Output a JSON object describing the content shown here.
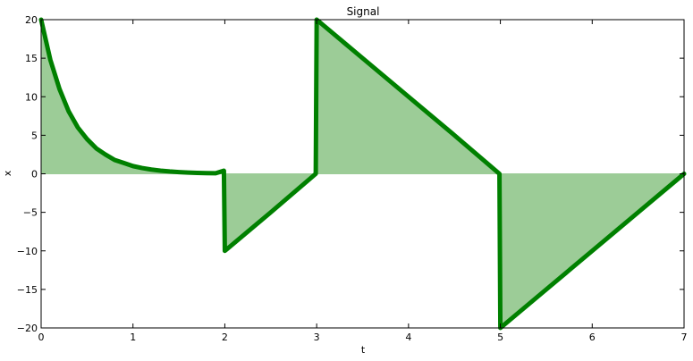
{
  "chart_data": {
    "type": "area",
    "title": "Signal",
    "xlabel": "t",
    "ylabel": "x",
    "xlim": [
      0,
      7
    ],
    "ylim": [
      -20,
      20
    ],
    "xticks": [
      0,
      1,
      2,
      3,
      4,
      5,
      6,
      7
    ],
    "yticks": [
      -20,
      -15,
      -10,
      -5,
      0,
      5,
      10,
      15,
      20
    ],
    "grid": false,
    "legend": "none",
    "series": [
      {
        "line_color": "#008000",
        "fill_color": "#9ccc97",
        "x": [
          0,
          0.1,
          0.2,
          0.3,
          0.4,
          0.5,
          0.6,
          0.7,
          0.8,
          0.9,
          1.0,
          1.1,
          1.2,
          1.3,
          1.4,
          1.5,
          1.6,
          1.7,
          1.8,
          1.9,
          1.99,
          2.0,
          2.5,
          2.99,
          3.0,
          3.5,
          4.0,
          4.5,
          4.99,
          5.0,
          5.5,
          6.0,
          6.5,
          7.0
        ],
        "y": [
          20,
          14.8,
          11.0,
          8.1,
          6.0,
          4.5,
          3.3,
          2.5,
          1.8,
          1.4,
          1.0,
          0.75,
          0.55,
          0.41,
          0.3,
          0.22,
          0.16,
          0.12,
          0.09,
          0.07,
          0.4,
          -10,
          -5,
          0,
          20,
          15,
          10,
          5,
          0,
          -20,
          -15,
          -10,
          -5,
          0
        ]
      }
    ]
  }
}
